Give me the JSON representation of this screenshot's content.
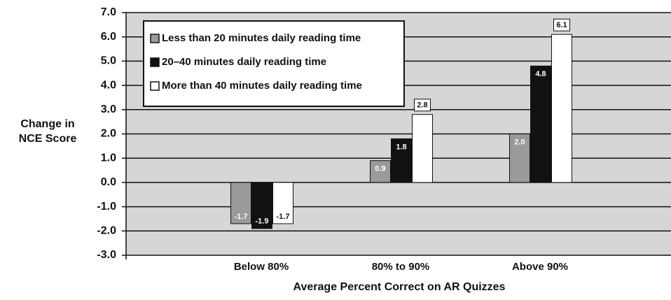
{
  "chart_data": {
    "type": "bar",
    "ylabel": [
      "Change in",
      "NCE Score"
    ],
    "xlabel": "Average Percent Correct on AR Quizzes",
    "categories": [
      "Below 80%",
      "80% to 90%",
      "Above 90%"
    ],
    "series": [
      {
        "name": "Less than 20 minutes daily reading time",
        "color": "#9a9a9a",
        "values": [
          -1.7,
          0.9,
          2.0
        ],
        "value_labels": [
          "-1.7",
          "0.9",
          "2.0"
        ]
      },
      {
        "name": "20–40 minutes daily reading time",
        "color": "#111111",
        "values": [
          -1.9,
          1.8,
          4.8
        ],
        "value_labels": [
          "-1.9",
          "1.8",
          "4.8"
        ]
      },
      {
        "name": "More than 40 minutes daily reading time",
        "color": "#ffffff",
        "values": [
          -1.7,
          2.8,
          6.1
        ],
        "value_labels": [
          "-1.7",
          "2.8",
          "6.1"
        ]
      }
    ],
    "ylim": [
      -3,
      7
    ],
    "yticks": [
      {
        "value": -3,
        "label": "-3.0"
      },
      {
        "value": -2,
        "label": "-2.0"
      },
      {
        "value": -1,
        "label": "-1.0"
      },
      {
        "value": 0,
        "label": "0.0"
      },
      {
        "value": 1,
        "label": "1.0"
      },
      {
        "value": 2,
        "label": "2.0"
      },
      {
        "value": 3,
        "label": "3.0"
      },
      {
        "value": 4,
        "label": "4.0"
      },
      {
        "value": 5,
        "label": "5.0"
      },
      {
        "value": 6,
        "label": "6.0"
      },
      {
        "value": 7,
        "label": "7.0"
      }
    ],
    "grid": true,
    "legend": "upper left"
  }
}
